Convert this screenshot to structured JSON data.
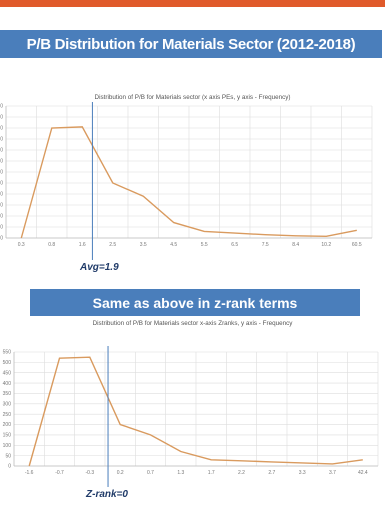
{
  "banner_title": "P/B Distribution for Materials Sector (2012-2018)",
  "second_banner": "Same as above in z-rank terms",
  "colors": {
    "banner": "#4a7ebb",
    "line": "#d99a5e",
    "marker": "#4a7ebb",
    "grid": "#dddddd",
    "top_strip": "#e05a2b"
  },
  "chart_data": [
    {
      "type": "line",
      "title": "Distribution of P/B for Materials sector (x axis PEs, y axis - Frequency)",
      "xlabel": "",
      "ylabel": "",
      "x": [
        "0.3",
        "0.8",
        "1.6",
        "2.5",
        "3.5",
        "4.5",
        "5.5",
        "6.5",
        "7.5",
        "8.4",
        "10.2",
        "60.5"
      ],
      "series": [
        {
          "values": [
            0,
            1000,
            1010,
            500,
            380,
            140,
            60,
            45,
            30,
            20,
            15,
            70
          ]
        }
      ],
      "ylim": [
        0,
        1200
      ],
      "y_tick_step": 100,
      "grid": true,
      "marker": {
        "x": 1.9,
        "label": "Avg=1.9"
      }
    },
    {
      "type": "line",
      "title": "Distribution of P/B for Materials sector x-axis Zranks, y axis - Frequency",
      "xlabel": "",
      "ylabel": "",
      "x": [
        "-1.6",
        "-0.7",
        "-0.3",
        "0.2",
        "0.7",
        "1.3",
        "1.7",
        "2.2",
        "2.7",
        "3.3",
        "3.7",
        "42.4"
      ],
      "series": [
        {
          "values": [
            0,
            520,
            525,
            200,
            150,
            70,
            30,
            25,
            20,
            15,
            10,
            30
          ]
        }
      ],
      "ylim": [
        0,
        550
      ],
      "y_ticks": [
        0,
        50,
        100,
        150,
        200,
        250,
        300,
        350,
        400,
        450,
        500,
        550
      ],
      "grid": true,
      "marker": {
        "x": 0,
        "label": "Z-rank=0"
      }
    }
  ]
}
